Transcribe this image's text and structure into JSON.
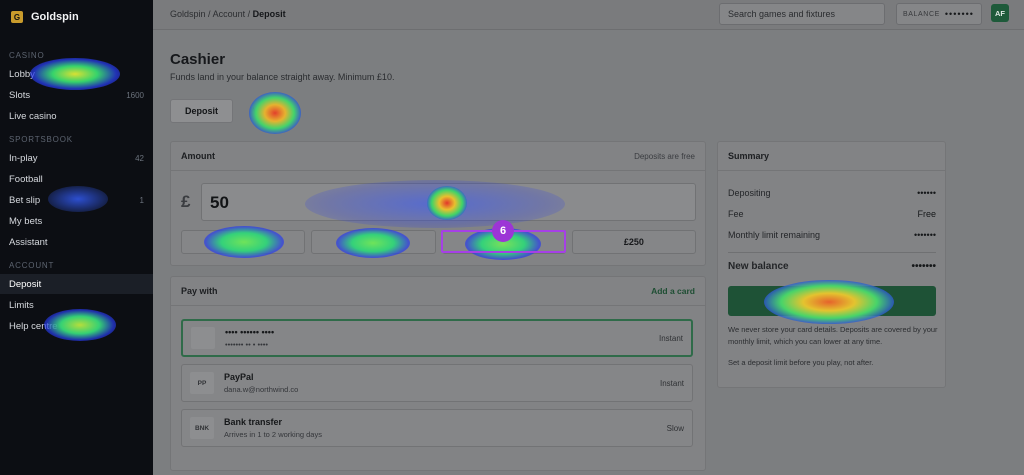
{
  "brand": {
    "name": "Goldspin",
    "logo_glyph": "G"
  },
  "sidebar": {
    "sections": [
      {
        "heading": "CASINO",
        "items": [
          {
            "label": "Lobby",
            "count": ""
          },
          {
            "label": "Slots",
            "count": "1600"
          },
          {
            "label": "Live casino",
            "count": ""
          }
        ]
      },
      {
        "heading": "SPORTSBOOK",
        "items": [
          {
            "label": "In-play",
            "count": "42"
          },
          {
            "label": "Football",
            "count": ""
          },
          {
            "label": "Bet slip",
            "count": "1"
          },
          {
            "label": "My bets",
            "count": ""
          },
          {
            "label": "Assistant",
            "count": ""
          }
        ]
      },
      {
        "heading": "ACCOUNT",
        "items": [
          {
            "label": "Deposit",
            "count": "",
            "active": true
          },
          {
            "label": "Limits",
            "count": ""
          },
          {
            "label": "Help centre",
            "count": ""
          }
        ]
      }
    ]
  },
  "topbar": {
    "breadcrumb_1": "Goldspin",
    "breadcrumb_2": "Account",
    "breadcrumb_current": "Deposit",
    "sep": "/",
    "search_placeholder": "Search games and fixtures",
    "balance_label": "BALANCE",
    "balance_value": "•••••••",
    "avatar_initials": "AF"
  },
  "page": {
    "title": "Cashier",
    "subtitle": "Funds land in your balance straight away. Minimum £10.",
    "tabs": [
      "Deposit",
      "Withdraw"
    ]
  },
  "amount": {
    "heading": "Amount",
    "note": "Deposits are free",
    "currency": "£",
    "value": "50",
    "presets": [
      "£20",
      "£50",
      "£100",
      "£250"
    ]
  },
  "pay": {
    "heading": "Pay with",
    "add_link": "Add a card",
    "methods": [
      {
        "badge": "",
        "name": "•••• •••••• ••••",
        "sub": "••••••• •• • ••••",
        "speed": "Instant"
      },
      {
        "badge": "PP",
        "name": "PayPal",
        "sub": "dana.w@northwind.co",
        "speed": "Instant"
      },
      {
        "badge": "BNK",
        "name": "Bank transfer",
        "sub": "Arrives in 1 to 2 working days",
        "speed": "Slow"
      }
    ]
  },
  "summary": {
    "heading": "Summary",
    "rows": [
      {
        "label": "Depositing",
        "value": "••••••"
      },
      {
        "label": "Fee",
        "value": "Free"
      },
      {
        "label": "Monthly limit remaining",
        "value": "•••••••"
      }
    ],
    "new_balance_label": "New balance",
    "new_balance_value": "•••••••",
    "confirm_label": "Confirm deposit",
    "note_1": "We never store your card details. Deposits are covered by your monthly limit, which you can lower at any time.",
    "note_2": "Set a deposit limit before you play, not after."
  },
  "heatmap": {
    "marker": "6"
  }
}
